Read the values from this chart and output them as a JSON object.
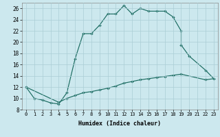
{
  "xlabel": "Humidex (Indice chaleur)",
  "background_color": "#cce8ee",
  "line_color": "#1a6b60",
  "grid_color": "#aacdd5",
  "xlim": [
    -0.5,
    23.5
  ],
  "ylim": [
    8,
    27
  ],
  "xticks": [
    0,
    1,
    2,
    3,
    4,
    5,
    6,
    7,
    8,
    9,
    10,
    11,
    12,
    13,
    14,
    15,
    16,
    17,
    18,
    19,
    20,
    21,
    22,
    23
  ],
  "yticks": [
    8,
    10,
    12,
    14,
    16,
    18,
    20,
    22,
    24,
    26
  ],
  "line1_pts": [
    [
      0,
      12
    ],
    [
      1,
      10
    ],
    [
      2,
      9.7
    ],
    [
      3,
      9.2
    ],
    [
      4,
      9.0
    ],
    [
      5,
      11.0
    ],
    [
      6,
      17.0
    ],
    [
      7,
      21.5
    ],
    [
      8,
      21.5
    ],
    [
      9,
      23.0
    ],
    [
      10,
      25.0
    ],
    [
      11,
      25.0
    ],
    [
      12,
      26.5
    ],
    [
      13,
      25.0
    ],
    [
      14,
      26.0
    ],
    [
      15,
      25.5
    ],
    [
      16,
      25.5
    ],
    [
      17,
      25.5
    ],
    [
      18,
      24.5
    ],
    [
      19,
      22.0
    ]
  ],
  "line2_pts": [
    [
      0,
      12
    ],
    [
      4,
      9.3
    ],
    [
      5,
      10.0
    ],
    [
      6,
      10.5
    ],
    [
      7,
      11.0
    ],
    [
      8,
      11.2
    ],
    [
      9,
      11.5
    ],
    [
      10,
      11.8
    ],
    [
      11,
      12.2
    ],
    [
      12,
      12.7
    ],
    [
      13,
      13.0
    ],
    [
      14,
      13.3
    ],
    [
      15,
      13.5
    ],
    [
      16,
      13.7
    ],
    [
      17,
      13.9
    ],
    [
      18,
      14.1
    ],
    [
      19,
      14.3
    ],
    [
      22,
      13.3
    ]
  ],
  "line3_pts": [
    [
      19,
      19.5
    ],
    [
      20,
      17.5
    ],
    [
      22,
      15.0
    ],
    [
      23,
      13.5
    ]
  ],
  "connect_19": [
    22.0,
    19.5
  ],
  "connect_22_23": [
    13.3,
    13.5
  ]
}
